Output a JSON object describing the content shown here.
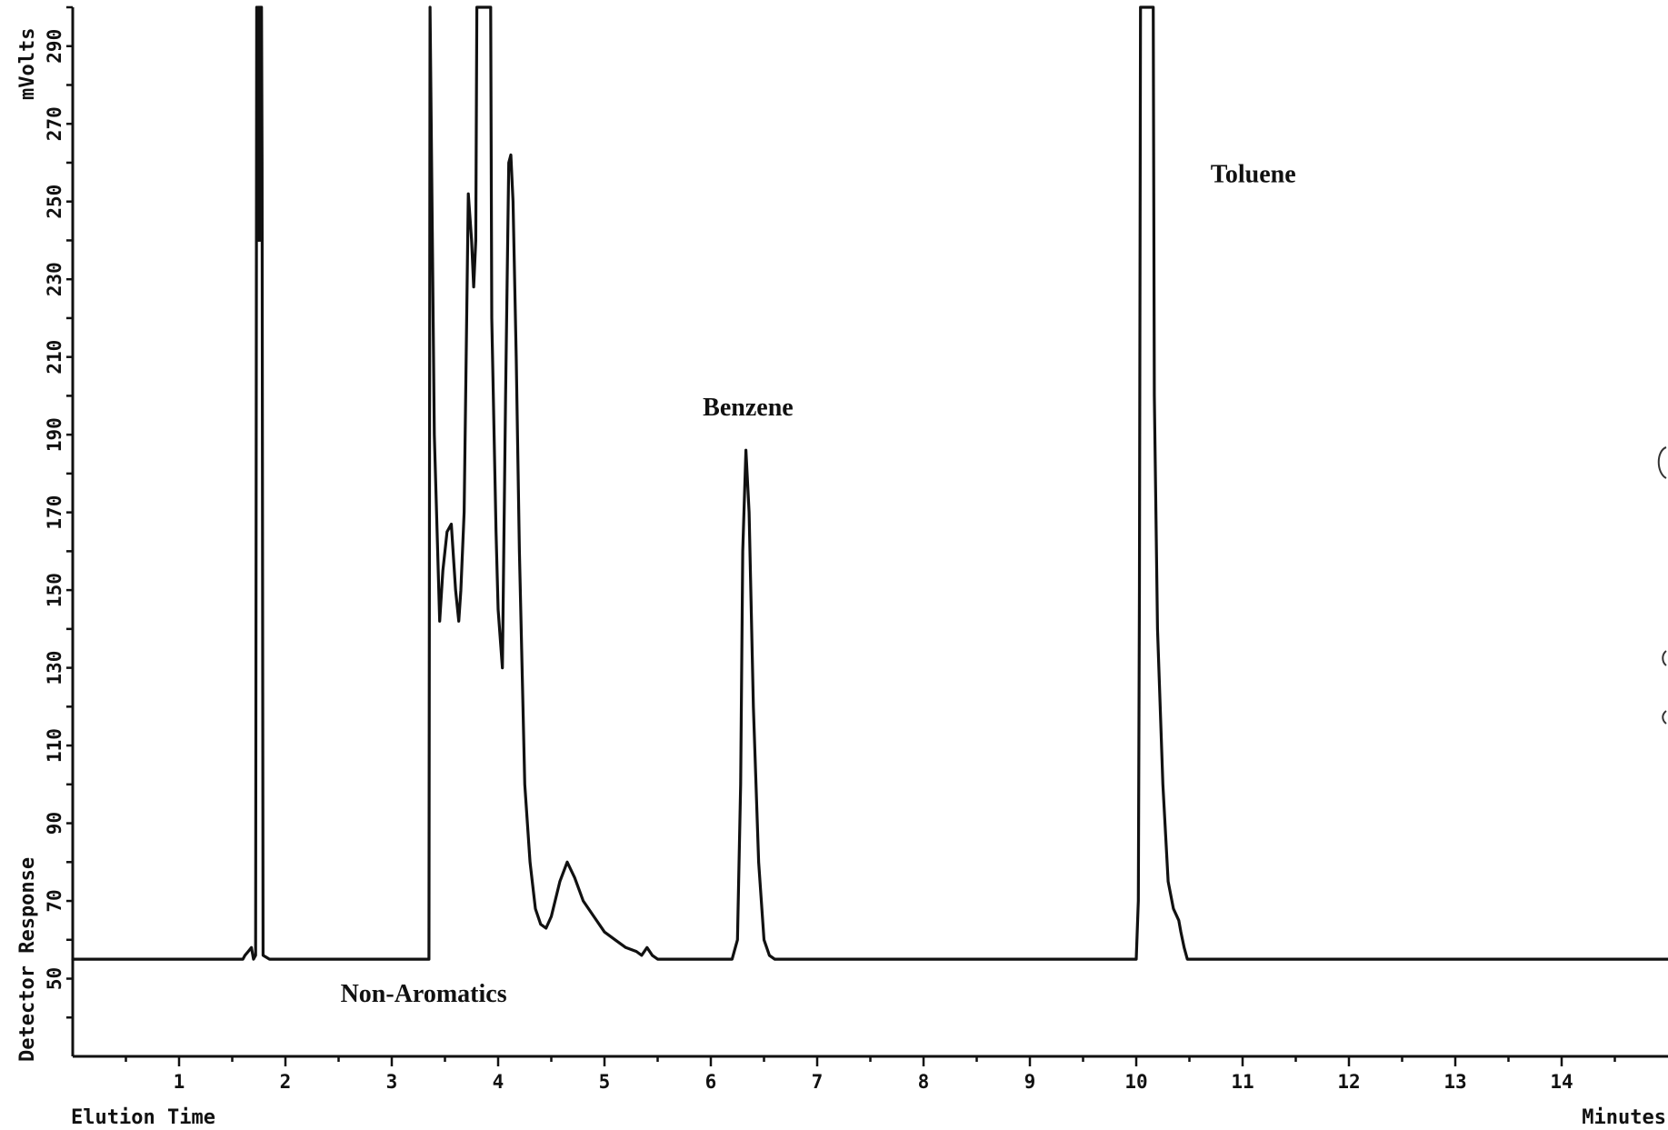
{
  "chart_data": {
    "type": "line",
    "title": "",
    "xlabel": "Elution Time",
    "xunit": "Minutes",
    "ylabel": "Detector Response",
    "yunit": "mVolts",
    "xlim": [
      0,
      15
    ],
    "ylim": [
      30,
      300
    ],
    "x_ticks": [
      1,
      2,
      3,
      4,
      5,
      6,
      7,
      8,
      9,
      10,
      11,
      12,
      13,
      14
    ],
    "y_ticks": [
      50,
      70,
      90,
      110,
      130,
      150,
      170,
      190,
      210,
      230,
      250,
      270,
      290
    ],
    "grid": false,
    "annotations": [
      {
        "text": "Non-Aromatics",
        "x": 3.3,
        "y": 44
      },
      {
        "text": "Benzene",
        "x": 6.35,
        "y": 195
      },
      {
        "text": "Toluene",
        "x": 11.1,
        "y": 255
      }
    ],
    "series": [
      {
        "x": [
          0,
          1.0,
          1.5,
          1.6,
          1.62,
          1.65,
          1.68,
          1.7,
          1.72,
          1.73,
          1.74,
          1.745,
          1.75,
          1.755,
          1.76,
          1.765,
          1.77,
          1.775,
          1.78,
          1.79,
          1.85,
          2.0,
          2.5,
          3.0,
          3.2,
          3.3,
          3.35,
          3.36,
          3.4,
          3.45,
          3.48,
          3.52,
          3.56,
          3.6,
          3.63,
          3.65,
          3.68,
          3.72,
          3.75,
          3.77,
          3.79,
          3.8,
          3.82,
          3.88,
          3.93,
          3.94,
          3.98,
          4.0,
          4.04,
          4.07,
          4.1,
          4.12,
          4.14,
          4.17,
          4.2,
          4.25,
          4.3,
          4.35,
          4.4,
          4.45,
          4.5,
          4.58,
          4.65,
          4.72,
          4.8,
          4.9,
          5.0,
          5.1,
          5.2,
          5.3,
          5.35,
          5.4,
          5.45,
          5.5,
          5.6,
          5.8,
          6.0,
          6.2,
          6.25,
          6.28,
          6.3,
          6.33,
          6.36,
          6.4,
          6.45,
          6.5,
          6.55,
          6.6,
          6.7,
          6.8,
          7.0,
          8.0,
          9.0,
          9.9,
          10.0,
          10.02,
          10.03,
          10.04,
          10.16,
          10.17,
          10.2,
          10.25,
          10.3,
          10.35,
          10.4,
          10.42,
          10.45,
          10.48,
          10.55,
          10.7,
          11.0,
          12.0,
          13.0,
          14.0,
          15.0
        ],
        "y": [
          55,
          55,
          55,
          55,
          56,
          57,
          58,
          55,
          56,
          300,
          260,
          300,
          240,
          300,
          250,
          300,
          240,
          300,
          260,
          56,
          55,
          55,
          55,
          55,
          55,
          55,
          55,
          300,
          190,
          142,
          155,
          165,
          167,
          150,
          142,
          150,
          170,
          252,
          240,
          228,
          240,
          300,
          300,
          300,
          300,
          220,
          165,
          145,
          130,
          200,
          260,
          262,
          250,
          210,
          160,
          100,
          80,
          68,
          64,
          63,
          66,
          75,
          80,
          76,
          70,
          66,
          62,
          60,
          58,
          57,
          56,
          58,
          56,
          55,
          55,
          55,
          55,
          55,
          60,
          100,
          160,
          186,
          170,
          120,
          80,
          60,
          56,
          55,
          55,
          55,
          55,
          55,
          55,
          55,
          55,
          70,
          150,
          300,
          300,
          200,
          140,
          100,
          75,
          68,
          65,
          62,
          58,
          55,
          55,
          55,
          55,
          55,
          55,
          55,
          55
        ]
      }
    ]
  }
}
